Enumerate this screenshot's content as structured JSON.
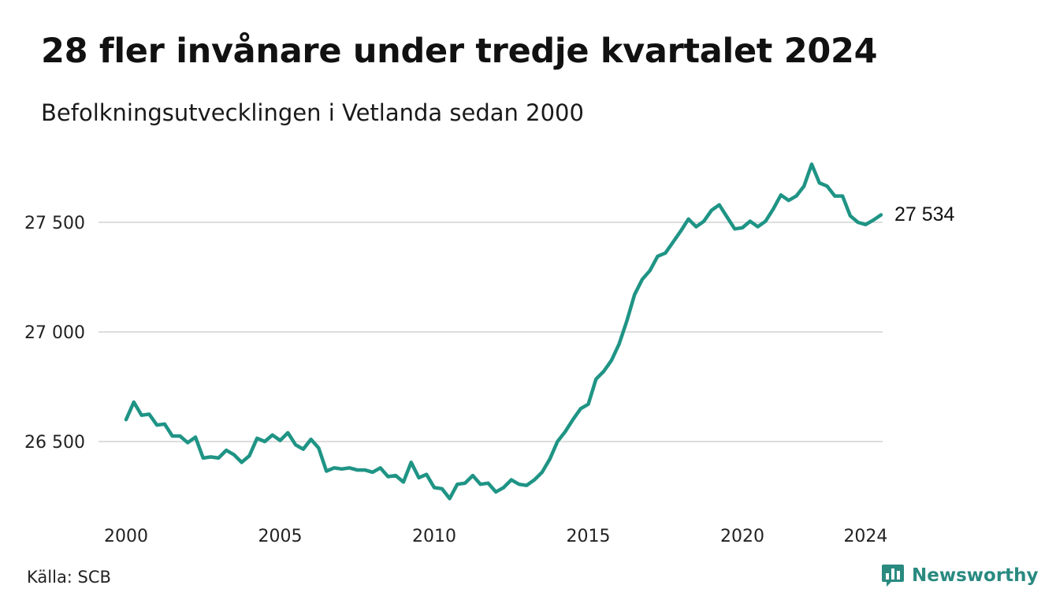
{
  "title": "28 fler invånare under tredje kvartalet 2024",
  "subtitle": "Befolkningsutvecklingen i Vetlanda sedan 2000",
  "source": "Källa: SCB",
  "brand": {
    "name": "Newsworthy",
    "icon": "newsworthy-bar-chart-logo-icon"
  },
  "colors": {
    "line": "#1f9485",
    "grid": "#dddddd",
    "brand": "#2a8a80"
  },
  "chart_data": {
    "type": "line",
    "title": "28 fler invånare under tredje kvartalet 2024",
    "subtitle": "Befolkningsutvecklingen i Vetlanda sedan 2000",
    "xlabel": "",
    "ylabel": "",
    "x_ticks": [
      "2000",
      "2005",
      "2010",
      "2015",
      "2020",
      "2024"
    ],
    "y_ticks": [
      "26 500",
      "27 000",
      "27 500"
    ],
    "ylim": [
      26250,
      27760
    ],
    "grid": "horizontal",
    "end_label": "27 534",
    "series": [
      {
        "x": [
          "2000Q1",
          "2000Q2",
          "2000Q3",
          "2000Q4",
          "2001Q1",
          "2001Q2",
          "2001Q3",
          "2001Q4",
          "2002Q1",
          "2002Q2",
          "2002Q3",
          "2002Q4",
          "2003Q1",
          "2003Q2",
          "2003Q3",
          "2003Q4",
          "2004Q1",
          "2004Q2",
          "2004Q3",
          "2004Q4",
          "2005Q1",
          "2005Q2",
          "2005Q3",
          "2005Q4",
          "2006Q1",
          "2006Q2",
          "2006Q3",
          "2006Q4",
          "2007Q1",
          "2007Q2",
          "2007Q3",
          "2007Q4",
          "2008Q1",
          "2008Q2",
          "2008Q3",
          "2008Q4",
          "2009Q1",
          "2009Q2",
          "2009Q3",
          "2009Q4",
          "2010Q1",
          "2010Q2",
          "2010Q3",
          "2010Q4",
          "2011Q1",
          "2011Q2",
          "2011Q3",
          "2011Q4",
          "2012Q1",
          "2012Q2",
          "2012Q3",
          "2012Q4",
          "2013Q1",
          "2013Q2",
          "2013Q3",
          "2013Q4",
          "2014Q1",
          "2014Q2",
          "2014Q3",
          "2014Q4",
          "2015Q1",
          "2015Q2",
          "2015Q3",
          "2015Q4",
          "2016Q1",
          "2016Q2",
          "2016Q3",
          "2016Q4",
          "2017Q1",
          "2017Q2",
          "2017Q3",
          "2017Q4",
          "2018Q1",
          "2018Q2",
          "2018Q3",
          "2018Q4",
          "2019Q1",
          "2019Q2",
          "2019Q3",
          "2019Q4",
          "2020Q1",
          "2020Q2",
          "2020Q3",
          "2020Q4",
          "2021Q1",
          "2021Q2",
          "2021Q3",
          "2021Q4",
          "2022Q1",
          "2022Q2",
          "2022Q3",
          "2022Q4",
          "2023Q1",
          "2023Q2",
          "2023Q3",
          "2023Q4",
          "2024Q1",
          "2024Q2",
          "2024Q3"
        ],
        "values": [
          26600,
          26680,
          26620,
          26625,
          26575,
          26580,
          26525,
          26525,
          26495,
          26520,
          26425,
          26430,
          26425,
          26460,
          26440,
          26405,
          26435,
          26515,
          26500,
          26530,
          26505,
          26540,
          26485,
          26465,
          26510,
          26470,
          26365,
          26380,
          26375,
          26380,
          26370,
          26370,
          26360,
          26380,
          26340,
          26345,
          26315,
          26405,
          26335,
          26350,
          26290,
          26285,
          26240,
          26305,
          26310,
          26345,
          26305,
          26310,
          26270,
          26290,
          26325,
          26305,
          26300,
          26325,
          26360,
          26420,
          26500,
          26545,
          26600,
          26650,
          26670,
          26785,
          26820,
          26870,
          26945,
          27050,
          27170,
          27240,
          27280,
          27345,
          27360,
          27410,
          27460,
          27515,
          27480,
          27505,
          27555,
          27580,
          27525,
          27470,
          27475,
          27505,
          27480,
          27505,
          27560,
          27625,
          27600,
          27620,
          27665,
          27765,
          27680,
          27665,
          27620,
          27620,
          27530,
          27500,
          27490,
          27510,
          27534
        ]
      }
    ]
  }
}
